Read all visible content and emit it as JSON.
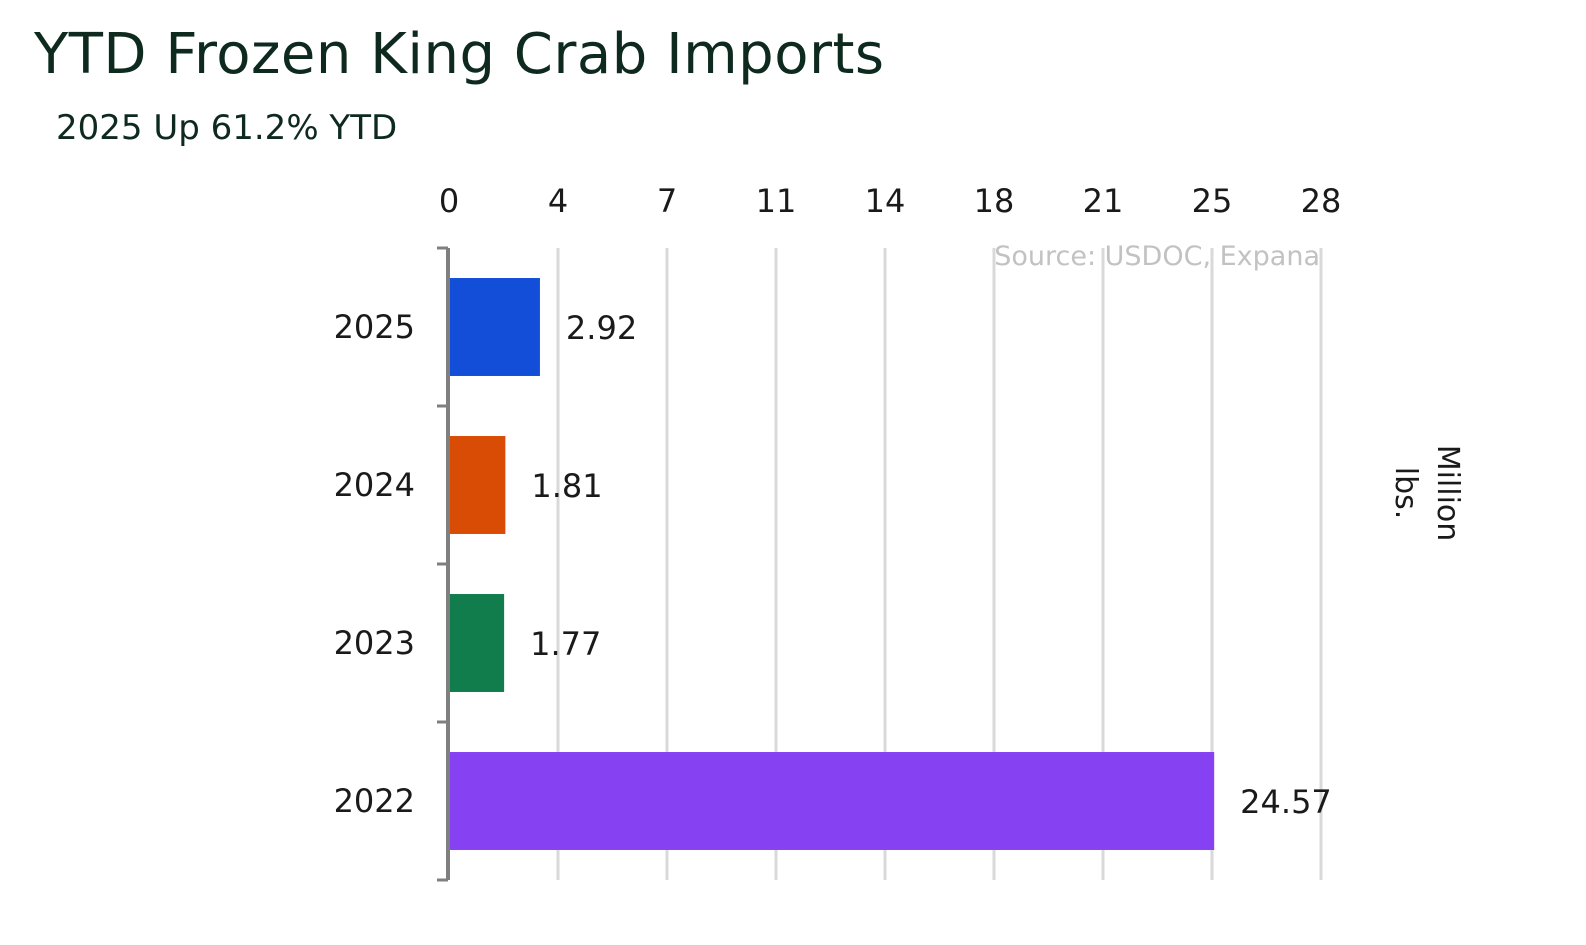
{
  "chart_data": {
    "type": "bar",
    "orientation": "horizontal",
    "title": "YTD Frozen King Crab Imports",
    "subtitle": "2025 Up 61.2% YTD",
    "categories": [
      "2025",
      "2024",
      "2023",
      "2022"
    ],
    "values": [
      2.92,
      1.81,
      1.77,
      24.57
    ],
    "value_labels": [
      "2.92",
      "1.81",
      "1.77",
      "24.57"
    ],
    "colors": [
      "#134ed9",
      "#d94c06",
      "#117d4c",
      "#8641f2"
    ],
    "xlim": [
      0,
      28
    ],
    "x_ticks": [
      0,
      3.5,
      7,
      10.5,
      14,
      17.5,
      21,
      24.5,
      28
    ],
    "x_tick_labels": [
      "0",
      "4",
      "7",
      "11",
      "14",
      "18",
      "21",
      "25",
      "28"
    ],
    "x_axis_position": "top",
    "xlabel": "",
    "ylabel": "",
    "unit_label": "Million lbs.",
    "source": "Source: USDOC, Expana",
    "grid": true,
    "legend": "none"
  }
}
